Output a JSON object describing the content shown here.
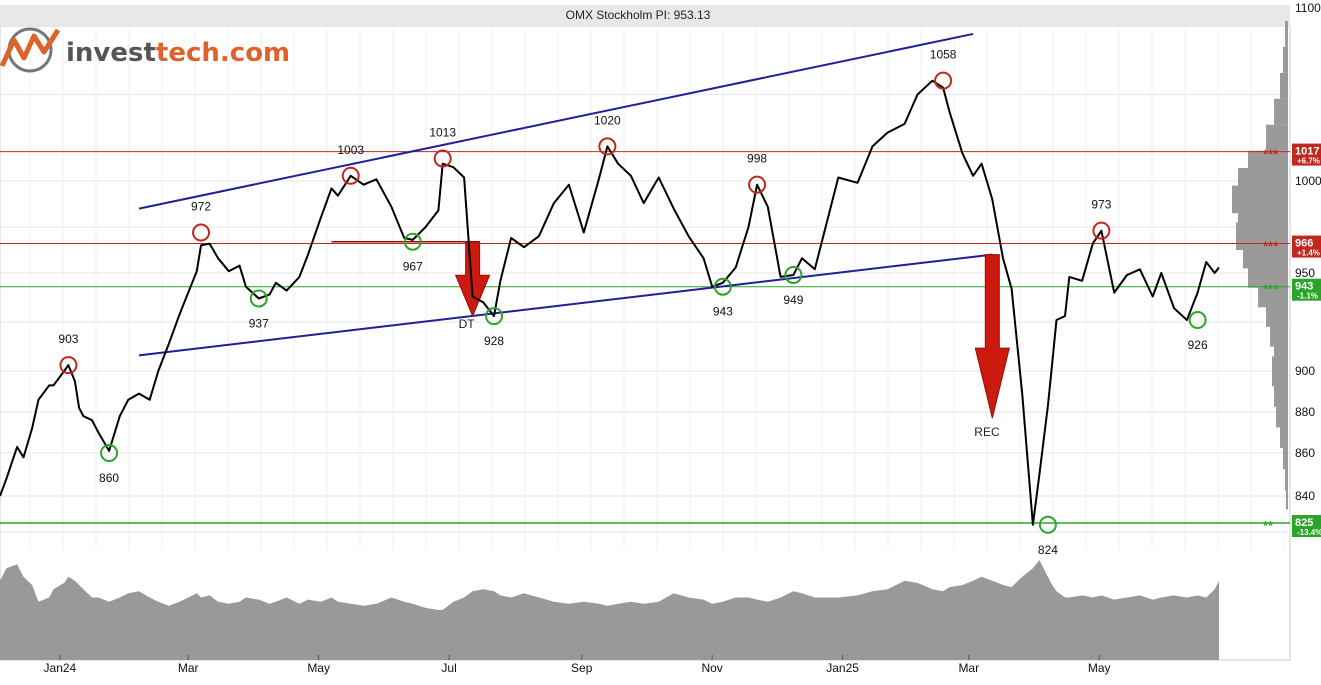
{
  "chart_data": {
    "type": "line",
    "title": "OMX Stockholm PI: 953.13",
    "logo": {
      "text_dark": "invest",
      "text_accent": "tech.com",
      "text_dark2": ""
    },
    "colors": {
      "price": "#000000",
      "trend_channel": "#1f1f9a",
      "resistance": "#c0281e",
      "support": "#2aa52a",
      "logo_accent": "#e0622a",
      "logo_dark": "#555555",
      "volume": "#999999",
      "grid": "#e6e6e6"
    },
    "ylim": [
      810,
      1100
    ],
    "y_ticks": [
      840,
      860,
      880,
      900,
      950,
      1000,
      1100
    ],
    "x_ticks": [
      "Jan24",
      "Mar",
      "May",
      "Jul",
      "Sep",
      "Nov",
      "Jan25",
      "Mar",
      "May"
    ],
    "x": [
      "2023-12-04",
      "2023-12-07",
      "2023-12-12",
      "2023-12-15",
      "2023-12-19",
      "2023-12-22",
      "2023-12-27",
      "2023-12-29",
      "2024-01-03",
      "2024-01-05",
      "2024-01-08",
      "2024-01-10",
      "2024-01-12",
      "2024-01-16",
      "2024-01-19",
      "2024-01-24",
      "2024-01-29",
      "2024-02-02",
      "2024-02-07",
      "2024-02-12",
      "2024-02-16",
      "2024-02-21",
      "2024-02-26",
      "2024-03-01",
      "2024-03-05",
      "2024-03-07",
      "2024-03-11",
      "2024-03-15",
      "2024-03-20",
      "2024-03-25",
      "2024-03-28",
      "2024-04-03",
      "2024-04-08",
      "2024-04-11",
      "2024-04-16",
      "2024-04-22",
      "2024-04-26",
      "2024-05-02",
      "2024-05-07",
      "2024-05-10",
      "2024-05-16",
      "2024-05-22",
      "2024-05-28",
      "2024-06-04",
      "2024-06-10",
      "2024-06-14",
      "2024-06-20",
      "2024-06-26",
      "2024-06-28",
      "2024-07-03",
      "2024-07-08",
      "2024-07-12",
      "2024-07-17",
      "2024-07-22",
      "2024-07-25",
      "2024-07-30",
      "2024-08-05",
      "2024-08-12",
      "2024-08-19",
      "2024-08-26",
      "2024-09-02",
      "2024-09-09",
      "2024-09-13",
      "2024-09-18",
      "2024-09-24",
      "2024-09-30",
      "2024-10-07",
      "2024-10-14",
      "2024-10-21",
      "2024-10-28",
      "2024-11-01",
      "2024-11-06",
      "2024-11-12",
      "2024-11-18",
      "2024-11-22",
      "2024-11-27",
      "2024-12-03",
      "2024-12-09",
      "2024-12-13",
      "2024-12-19",
      "2024-12-30",
      "2025-01-08",
      "2025-01-15",
      "2025-01-22",
      "2025-01-30",
      "2025-02-05",
      "2025-02-12",
      "2025-02-17",
      "2025-02-20",
      "2025-02-26",
      "2025-03-03",
      "2025-03-07",
      "2025-03-12",
      "2025-03-17",
      "2025-03-21",
      "2025-03-26",
      "2025-03-31",
      "2025-04-03",
      "2025-04-07",
      "2025-04-09",
      "2025-04-11",
      "2025-04-15",
      "2025-04-17",
      "2025-04-23",
      "2025-04-28",
      "2025-05-02",
      "2025-05-08",
      "2025-05-14",
      "2025-05-20",
      "2025-05-26",
      "2025-05-30",
      "2025-06-05",
      "2025-06-11",
      "2025-06-16",
      "2025-06-20",
      "2025-06-24",
      "2025-06-26"
    ],
    "series": [
      {
        "name": "",
        "values": [
          840,
          848,
          863,
          858,
          872,
          886,
          893,
          893,
          900,
          903,
          895,
          882,
          878,
          876,
          870,
          861,
          878,
          886,
          889,
          886,
          900,
          914,
          929,
          940,
          951,
          965,
          966,
          958,
          951,
          954,
          943,
          937,
          939,
          945,
          941,
          948,
          960,
          980,
          996,
          992,
          1003,
          998,
          1001,
          986,
          969,
          968,
          975,
          984,
          1010,
          1008,
          1002,
          938,
          935,
          928,
          946,
          969,
          964,
          970,
          988,
          998,
          972,
          1001,
          1020,
          1010,
          1003,
          988,
          1002,
          985,
          970,
          958,
          943,
          945,
          953,
          975,
          998,
          986,
          948,
          949,
          958,
          952,
          1002,
          999,
          1020,
          1028,
          1033,
          1050,
          1058,
          1054,
          1040,
          1016,
          1003,
          1010,
          990,
          958,
          942,
          889,
          824,
          850,
          883,
          904,
          926,
          928,
          948,
          946,
          966,
          973,
          940,
          949,
          952,
          938,
          950,
          932,
          926,
          940,
          956,
          950,
          953
        ]
      }
    ],
    "peaks": [
      {
        "x": "2024-01-05",
        "value": 903,
        "label": "903"
      },
      {
        "x": "2024-03-07",
        "value": 972,
        "label": "972"
      },
      {
        "x": "2024-05-16",
        "value": 1003,
        "label": "1003"
      },
      {
        "x": "2024-06-28",
        "value": 1013,
        "label": "1013"
      },
      {
        "x": "2024-09-13",
        "value": 1020,
        "label": "1020"
      },
      {
        "x": "2024-11-22",
        "value": 998,
        "label": "998"
      },
      {
        "x": "2025-02-17",
        "value": 1058,
        "label": "1058"
      },
      {
        "x": "2025-05-02",
        "value": 973,
        "label": "973"
      }
    ],
    "troughs": [
      {
        "x": "2024-01-24",
        "value": 860,
        "label": "860"
      },
      {
        "x": "2024-04-03",
        "value": 937,
        "label": "937"
      },
      {
        "x": "2024-06-14",
        "value": 967,
        "label": "967"
      },
      {
        "x": "2024-07-22",
        "value": 928,
        "label": "928"
      },
      {
        "x": "2024-11-06",
        "value": 943,
        "label": "943"
      },
      {
        "x": "2024-12-09",
        "value": 949,
        "label": "949"
      },
      {
        "x": "2025-04-07",
        "value": 824,
        "label": "824"
      },
      {
        "x": "2025-06-16",
        "value": 926,
        "label": "926"
      }
    ],
    "trend_lines": [
      {
        "name": "channel-upper",
        "x1": "2024-02-07",
        "y1": 985,
        "x2": "2025-03-03",
        "y2": 1085
      },
      {
        "name": "channel-lower",
        "x1": "2024-02-07",
        "y1": 908,
        "x2": "2025-03-12",
        "y2": 960
      }
    ],
    "horizontal_levels": [
      {
        "value": 1017,
        "label": "1017",
        "pct": "+6.7%",
        "type": "resistance",
        "stars": "***"
      },
      {
        "value": 966,
        "label": "966",
        "pct": "+1.4%",
        "type": "resistance",
        "stars": "***"
      },
      {
        "value": 943,
        "label": "943",
        "pct": "-1.1%",
        "type": "support",
        "stars": "***"
      },
      {
        "value": 825,
        "label": "825",
        "pct": "-13.4%",
        "type": "support",
        "stars": "**"
      }
    ],
    "patterns": [
      {
        "label": "DT",
        "x": "2024-07-12",
        "top": 967,
        "target": 928,
        "neck_from": "2024-05-07"
      },
      {
        "label": "REC",
        "x": "2025-03-12",
        "top": 960,
        "target": 877
      }
    ],
    "volume_profile": [
      {
        "price": 1085,
        "w": 3
      },
      {
        "price": 1070,
        "w": 5
      },
      {
        "price": 1055,
        "w": 8
      },
      {
        "price": 1040,
        "w": 14
      },
      {
        "price": 1025,
        "w": 22
      },
      {
        "price": 1010,
        "w": 40
      },
      {
        "price": 1000,
        "w": 50
      },
      {
        "price": 990,
        "w": 56
      },
      {
        "price": 980,
        "w": 50
      },
      {
        "price": 970,
        "w": 52
      },
      {
        "price": 960,
        "w": 45
      },
      {
        "price": 950,
        "w": 40
      },
      {
        "price": 940,
        "w": 30
      },
      {
        "price": 930,
        "w": 22
      },
      {
        "price": 920,
        "w": 18
      },
      {
        "price": 910,
        "w": 14
      },
      {
        "price": 900,
        "w": 16
      },
      {
        "price": 890,
        "w": 14
      },
      {
        "price": 880,
        "w": 12
      },
      {
        "price": 870,
        "w": 8
      },
      {
        "price": 860,
        "w": 5
      },
      {
        "price": 850,
        "w": 3
      },
      {
        "price": 840,
        "w": 2
      }
    ],
    "volume": [
      38,
      44,
      46,
      40,
      36,
      28,
      30,
      34,
      37,
      40,
      38,
      36,
      34,
      30,
      30,
      28,
      30,
      32,
      33,
      30,
      28,
      26,
      28,
      30,
      32,
      30,
      31,
      28,
      27,
      28,
      30,
      29,
      27,
      28,
      30,
      27,
      29,
      28,
      30,
      28,
      27,
      26,
      27,
      30,
      28,
      27,
      25,
      24,
      24,
      28,
      30,
      33,
      34,
      33,
      31,
      30,
      32,
      30,
      28,
      27,
      28,
      27,
      26,
      27,
      28,
      27,
      28,
      32,
      30,
      29,
      27,
      28,
      30,
      30,
      29,
      28,
      30,
      33,
      32,
      30,
      30,
      31,
      33,
      34,
      38,
      37,
      34,
      33,
      35,
      36,
      38,
      40,
      38,
      36,
      35,
      40,
      44,
      48,
      40,
      36,
      33,
      30,
      30,
      31,
      30,
      31,
      29,
      30,
      31,
      29,
      30,
      31,
      30,
      31,
      30,
      34,
      38
    ]
  }
}
